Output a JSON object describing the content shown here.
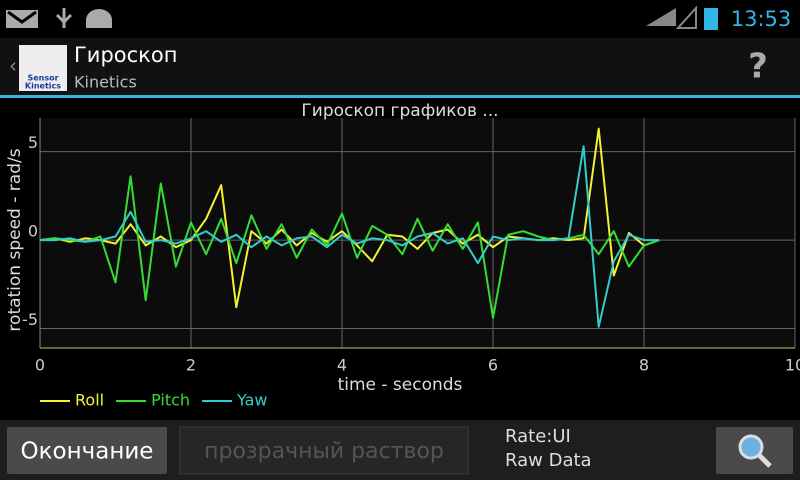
{
  "status_bar": {
    "time": "13:53"
  },
  "action_bar": {
    "icon_text": [
      "Sensor",
      "Kinetics"
    ],
    "title": "Гироскоп",
    "subtitle": "Kinetics",
    "help": "?"
  },
  "chart_data": {
    "type": "line",
    "title": "Гироскоп графиков  ...",
    "x_label": "time - seconds",
    "y_label": "rotation speed - rad/s",
    "x": [
      0,
      0.2,
      0.4,
      0.6,
      0.8,
      1.0,
      1.2,
      1.4,
      1.6,
      1.8,
      2.0,
      2.2,
      2.4,
      2.6,
      2.8,
      3.0,
      3.2,
      3.4,
      3.6,
      3.8,
      4.0,
      4.2,
      4.4,
      4.6,
      4.8,
      5.0,
      5.2,
      5.4,
      5.6,
      5.8,
      6.0,
      6.2,
      6.4,
      6.6,
      6.8,
      7.0,
      7.2,
      7.4,
      7.6,
      7.8,
      8.0,
      8.2
    ],
    "series": [
      {
        "name": "Roll",
        "color": "#f2f230",
        "values": [
          0,
          0.1,
          -0.1,
          0.1,
          0,
          -0.2,
          0.9,
          -0.3,
          0.2,
          -0.4,
          0,
          1.2,
          3.1,
          -3.8,
          0.5,
          -0.2,
          0.6,
          -0.3,
          0.4,
          -0.1,
          0.5,
          -0.3,
          -1.2,
          0.3,
          0.2,
          -0.5,
          0.4,
          0.6,
          -0.2,
          0.3,
          -0.4,
          0.2,
          0.1,
          0,
          0.1,
          0,
          0.1,
          6.3,
          -2,
          0.4,
          -0.3,
          0
        ]
      },
      {
        "name": "Pitch",
        "color": "#33dd33",
        "values": [
          0,
          0.1,
          0,
          -0.1,
          0.2,
          -2.4,
          3.6,
          -3.4,
          3.2,
          -1.5,
          1.0,
          -0.8,
          1.2,
          -1.3,
          1.4,
          -0.5,
          0.9,
          -1.0,
          0.6,
          -0.3,
          1.5,
          -1.0,
          0.8,
          0.3,
          -0.8,
          1.2,
          -0.6,
          0.9,
          -0.5,
          1.0,
          -4.4,
          0.3,
          0.5,
          0.2,
          0,
          0.1,
          0.3,
          -0.8,
          0.5,
          -1.5,
          -0.3,
          0
        ]
      },
      {
        "name": "Yaw",
        "color": "#33cccc",
        "values": [
          0,
          0,
          0.1,
          -0.1,
          0,
          0.2,
          1.6,
          -0.1,
          0,
          -0.2,
          0.1,
          0.5,
          -0.1,
          0.3,
          -0.4,
          0.2,
          -0.3,
          0.1,
          0.2,
          -0.4,
          0.3,
          -0.2,
          0.1,
          0,
          -0.3,
          0.2,
          0.4,
          -0.2,
          0.1,
          -1.3,
          0.2,
          0,
          0.1,
          0,
          0,
          0.1,
          5.3,
          -4.9,
          -1.2,
          0.3,
          0,
          0
        ]
      }
    ],
    "xlim": [
      0,
      10
    ],
    "ylim": [
      -6.1,
      6.9
    ],
    "xticks": [
      0,
      2,
      4,
      6,
      8,
      10
    ],
    "yticks": [
      5,
      0,
      -5
    ],
    "grid": true,
    "legend": "bottom-left"
  },
  "bottom_bar": {
    "button": "Окончание",
    "input": "прозрачный раствор",
    "rate": "Rate:UI",
    "mode": "Raw Data"
  }
}
